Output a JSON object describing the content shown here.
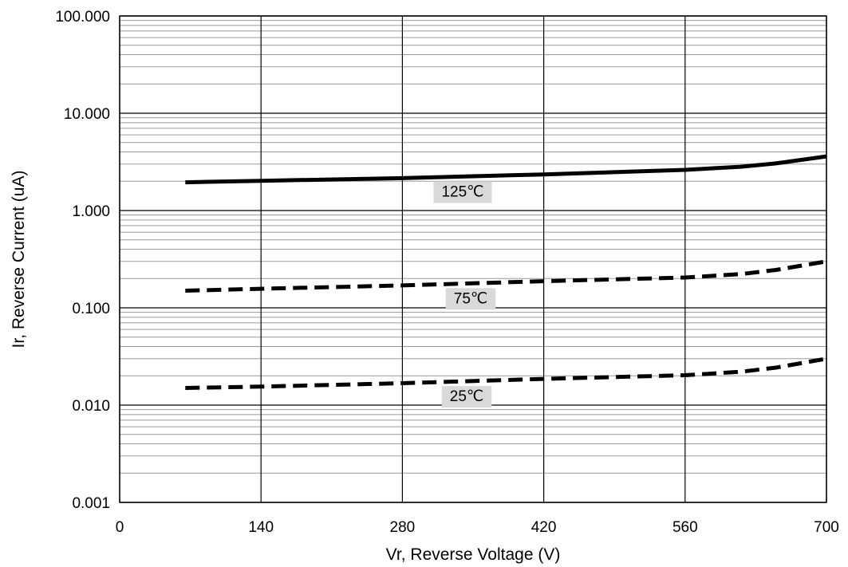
{
  "chart_data": {
    "type": "line",
    "title": "",
    "xlabel": "Vr, Reverse Voltage (V)",
    "ylabel": "Ir, Reverse Current (uA)",
    "x_scale": "linear",
    "y_scale": "log",
    "xlim": [
      0,
      700
    ],
    "ylim": [
      0.001,
      100
    ],
    "x_ticks": [
      "0",
      "140",
      "280",
      "420",
      "560",
      "700"
    ],
    "y_ticks": [
      "0.001",
      "0.010",
      "0.100",
      "1.000",
      "10.000",
      "100.000"
    ],
    "grid": true,
    "series": [
      {
        "name": "125℃",
        "style": "solid",
        "color": "#000000",
        "x": [
          65,
          140,
          280,
          420,
          560,
          615,
          650,
          700
        ],
        "y": [
          1.95,
          2.02,
          2.15,
          2.35,
          2.62,
          2.82,
          3.05,
          3.6
        ]
      },
      {
        "name": "75℃",
        "style": "dashed",
        "color": "#000000",
        "x": [
          65,
          140,
          280,
          420,
          560,
          615,
          650,
          700
        ],
        "y": [
          0.15,
          0.157,
          0.17,
          0.188,
          0.205,
          0.222,
          0.245,
          0.3
        ]
      },
      {
        "name": "25℃",
        "style": "dashed",
        "color": "#000000",
        "x": [
          65,
          140,
          280,
          420,
          560,
          615,
          650,
          700
        ],
        "y": [
          0.015,
          0.0155,
          0.0168,
          0.0186,
          0.0203,
          0.022,
          0.0243,
          0.03
        ]
      }
    ]
  }
}
